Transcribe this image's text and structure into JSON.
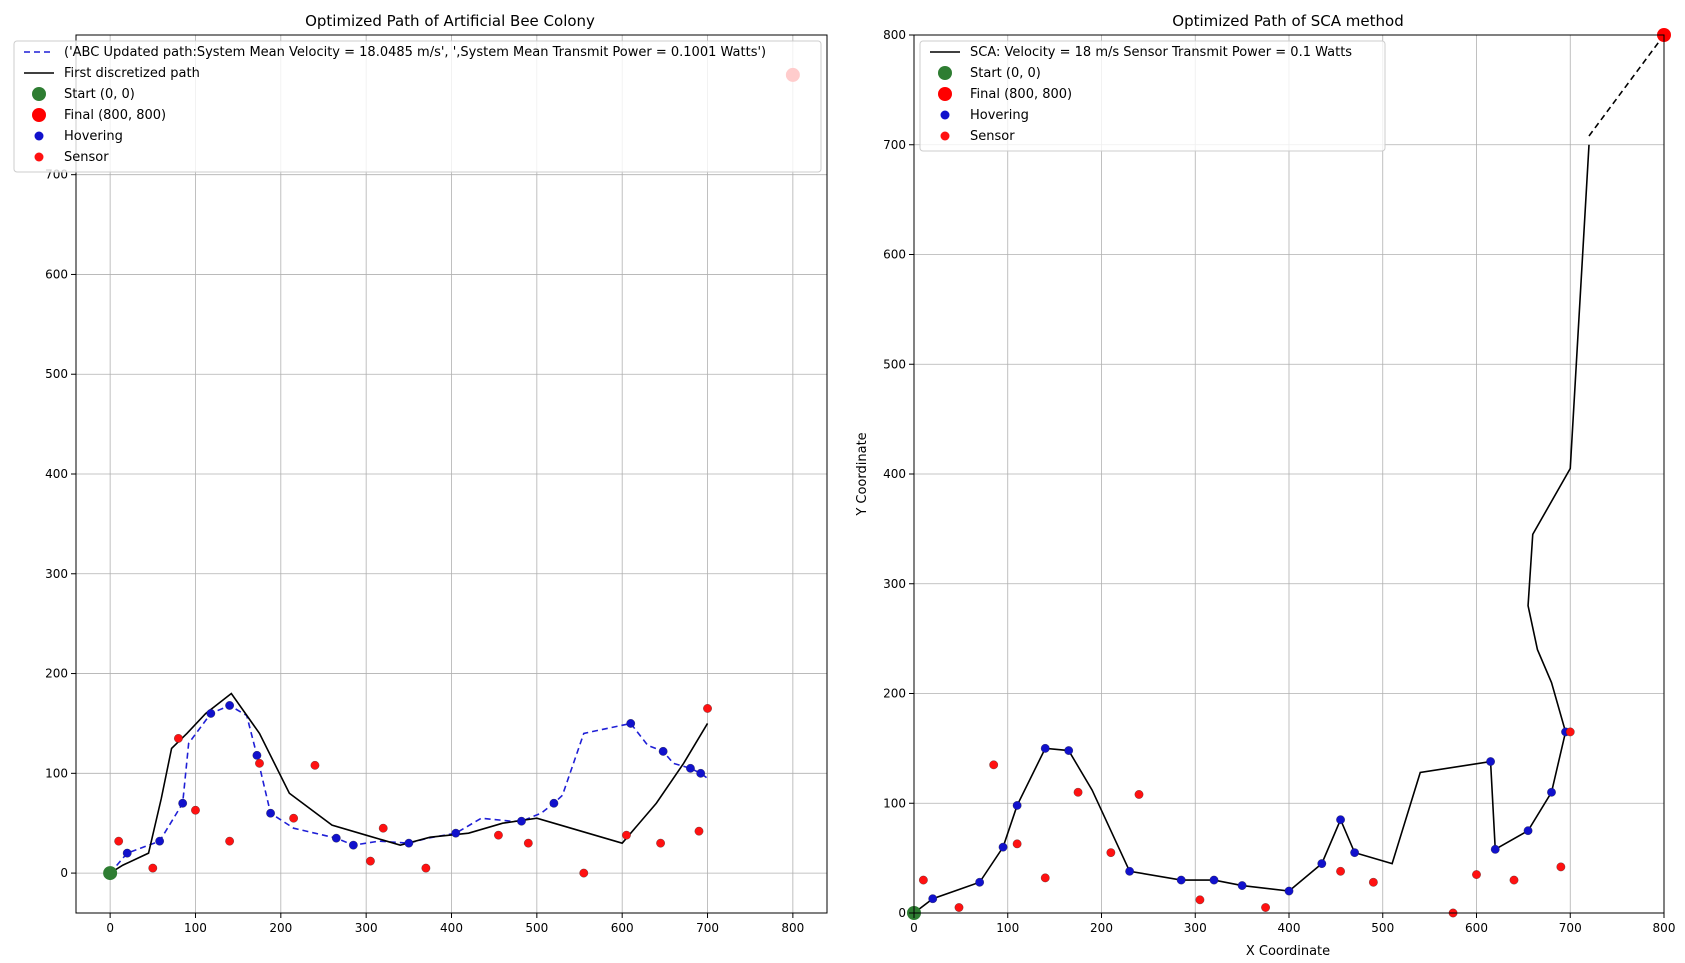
{
  "chart_data": [
    {
      "type": "line",
      "title": "Optimized Path of  Artificial Bee Colony",
      "xlabel": "",
      "ylabel": "",
      "xlim": [
        -40,
        840
      ],
      "ylim": [
        -40,
        840
      ],
      "xticks": [
        0,
        100,
        200,
        300,
        400,
        500,
        600,
        700,
        800
      ],
      "yticks": [
        0,
        100,
        200,
        300,
        400,
        500,
        600,
        700
      ],
      "grid": true,
      "legend_position": "top-left",
      "legend": [
        {
          "label": "('ABC Updated path:System Mean Velocity = 18.0485 m/s', ',System Mean Transmit Power = 0.1001 Watts')",
          "kind": "dashed-line",
          "color": "#1f1fd6"
        },
        {
          "label": "First discretized path",
          "kind": "line",
          "color": "#000000"
        },
        {
          "label": "Start (0, 0)",
          "kind": "big-dot",
          "color": "#2e7d32"
        },
        {
          "label": "Final (800, 800)",
          "kind": "big-dot",
          "color": "#ff0000"
        },
        {
          "label": "Hovering",
          "kind": "dot",
          "color": "#1111cc"
        },
        {
          "label": "Sensor",
          "kind": "dot",
          "color": "#ff1111"
        }
      ],
      "start": [
        0,
        0
      ],
      "final": [
        800,
        800
      ],
      "series": [
        {
          "name": "ABC Updated path",
          "style": "dashed",
          "color": "#1f1fd6",
          "x": [
            0,
            20,
            58,
            85,
            92,
            118,
            140,
            160,
            172,
            188,
            215,
            265,
            285,
            315,
            350,
            372,
            405,
            435,
            470,
            482,
            505,
            520,
            530,
            555,
            610,
            630,
            648,
            660,
            680,
            692,
            700
          ],
          "y": [
            0,
            20,
            32,
            70,
            130,
            160,
            168,
            158,
            118,
            60,
            45,
            35,
            28,
            32,
            30,
            35,
            40,
            55,
            52,
            52,
            60,
            70,
            78,
            140,
            150,
            128,
            122,
            110,
            105,
            100,
            95
          ]
        },
        {
          "name": "First discretized path",
          "style": "solid",
          "color": "#000000",
          "x": [
            0,
            15,
            45,
            60,
            72,
            90,
            112,
            142,
            175,
            210,
            260,
            300,
            340,
            375,
            420,
            460,
            500,
            528,
            560,
            600,
            640,
            672,
            700
          ],
          "y": [
            0,
            8,
            20,
            75,
            125,
            140,
            160,
            180,
            140,
            80,
            48,
            38,
            28,
            36,
            40,
            50,
            55,
            48,
            40,
            30,
            70,
            110,
            150
          ]
        },
        {
          "name": "Hovering",
          "style": "points",
          "color": "#1111cc",
          "x": [
            20,
            58,
            85,
            118,
            140,
            172,
            188,
            265,
            285,
            350,
            405,
            482,
            520,
            610,
            648,
            680,
            692
          ],
          "y": [
            20,
            32,
            70,
            160,
            168,
            118,
            60,
            35,
            28,
            30,
            40,
            52,
            70,
            150,
            122,
            105,
            100
          ]
        },
        {
          "name": "Sensor",
          "style": "points",
          "color": "#ff1111",
          "x": [
            10,
            50,
            80,
            100,
            140,
            175,
            215,
            240,
            305,
            320,
            370,
            455,
            490,
            555,
            605,
            645,
            690,
            700
          ],
          "y": [
            32,
            5,
            135,
            63,
            32,
            110,
            55,
            108,
            12,
            45,
            5,
            38,
            30,
            0,
            38,
            30,
            42,
            165
          ]
        }
      ]
    },
    {
      "type": "line",
      "title": "Optimized Path of SCA method",
      "xlabel": "X Coordinate",
      "ylabel": "Y Coordinate",
      "xlim": [
        0,
        800
      ],
      "ylim": [
        0,
        800
      ],
      "xticks": [
        0,
        100,
        200,
        300,
        400,
        500,
        600,
        700,
        800
      ],
      "yticks": [
        0,
        100,
        200,
        300,
        400,
        500,
        600,
        700,
        800
      ],
      "grid": true,
      "legend_position": "top-left",
      "legend": [
        {
          "label": "SCA: Velocity = 18 m/s Sensor Transmit Power = 0.1 Watts",
          "kind": "line",
          "color": "#000000"
        },
        {
          "label": "Start (0, 0)",
          "kind": "big-dot",
          "color": "#2e7d32"
        },
        {
          "label": "Final (800, 800)",
          "kind": "big-dot",
          "color": "#ff0000"
        },
        {
          "label": "Hovering",
          "kind": "dot",
          "color": "#1111cc"
        },
        {
          "label": "Sensor",
          "kind": "dot",
          "color": "#ff1111"
        }
      ],
      "start": [
        0,
        0
      ],
      "final": [
        800,
        800
      ],
      "series": [
        {
          "name": "SCA path",
          "style": "solid",
          "color": "#000000",
          "x": [
            0,
            20,
            70,
            95,
            110,
            140,
            165,
            190,
            230,
            285,
            320,
            350,
            400,
            435,
            455,
            470,
            510,
            540,
            615,
            620,
            655,
            680,
            695,
            680,
            665,
            655,
            660,
            700,
            720
          ],
          "y": [
            0,
            13,
            28,
            60,
            98,
            150,
            148,
            112,
            38,
            30,
            30,
            25,
            20,
            45,
            85,
            55,
            45,
            128,
            138,
            58,
            75,
            110,
            165,
            210,
            240,
            280,
            345,
            405,
            700
          ]
        },
        {
          "name": "Final segment",
          "style": "dashed",
          "color": "#000000",
          "x": [
            720,
            800
          ],
          "y": [
            708,
            800
          ]
        },
        {
          "name": "Hovering",
          "style": "points",
          "color": "#1111cc",
          "x": [
            20,
            70,
            95,
            110,
            140,
            165,
            230,
            285,
            320,
            350,
            400,
            435,
            455,
            470,
            615,
            620,
            655,
            680,
            695
          ],
          "y": [
            13,
            28,
            60,
            98,
            150,
            148,
            38,
            30,
            30,
            25,
            20,
            45,
            85,
            55,
            138,
            58,
            75,
            110,
            165
          ]
        },
        {
          "name": "Sensor",
          "style": "points",
          "color": "#ff1111",
          "x": [
            10,
            48,
            85,
            110,
            140,
            175,
            210,
            240,
            305,
            375,
            455,
            490,
            575,
            600,
            640,
            690,
            700
          ],
          "y": [
            30,
            5,
            135,
            63,
            32,
            110,
            55,
            108,
            12,
            5,
            38,
            28,
            0,
            35,
            30,
            42,
            165
          ]
        }
      ]
    }
  ]
}
